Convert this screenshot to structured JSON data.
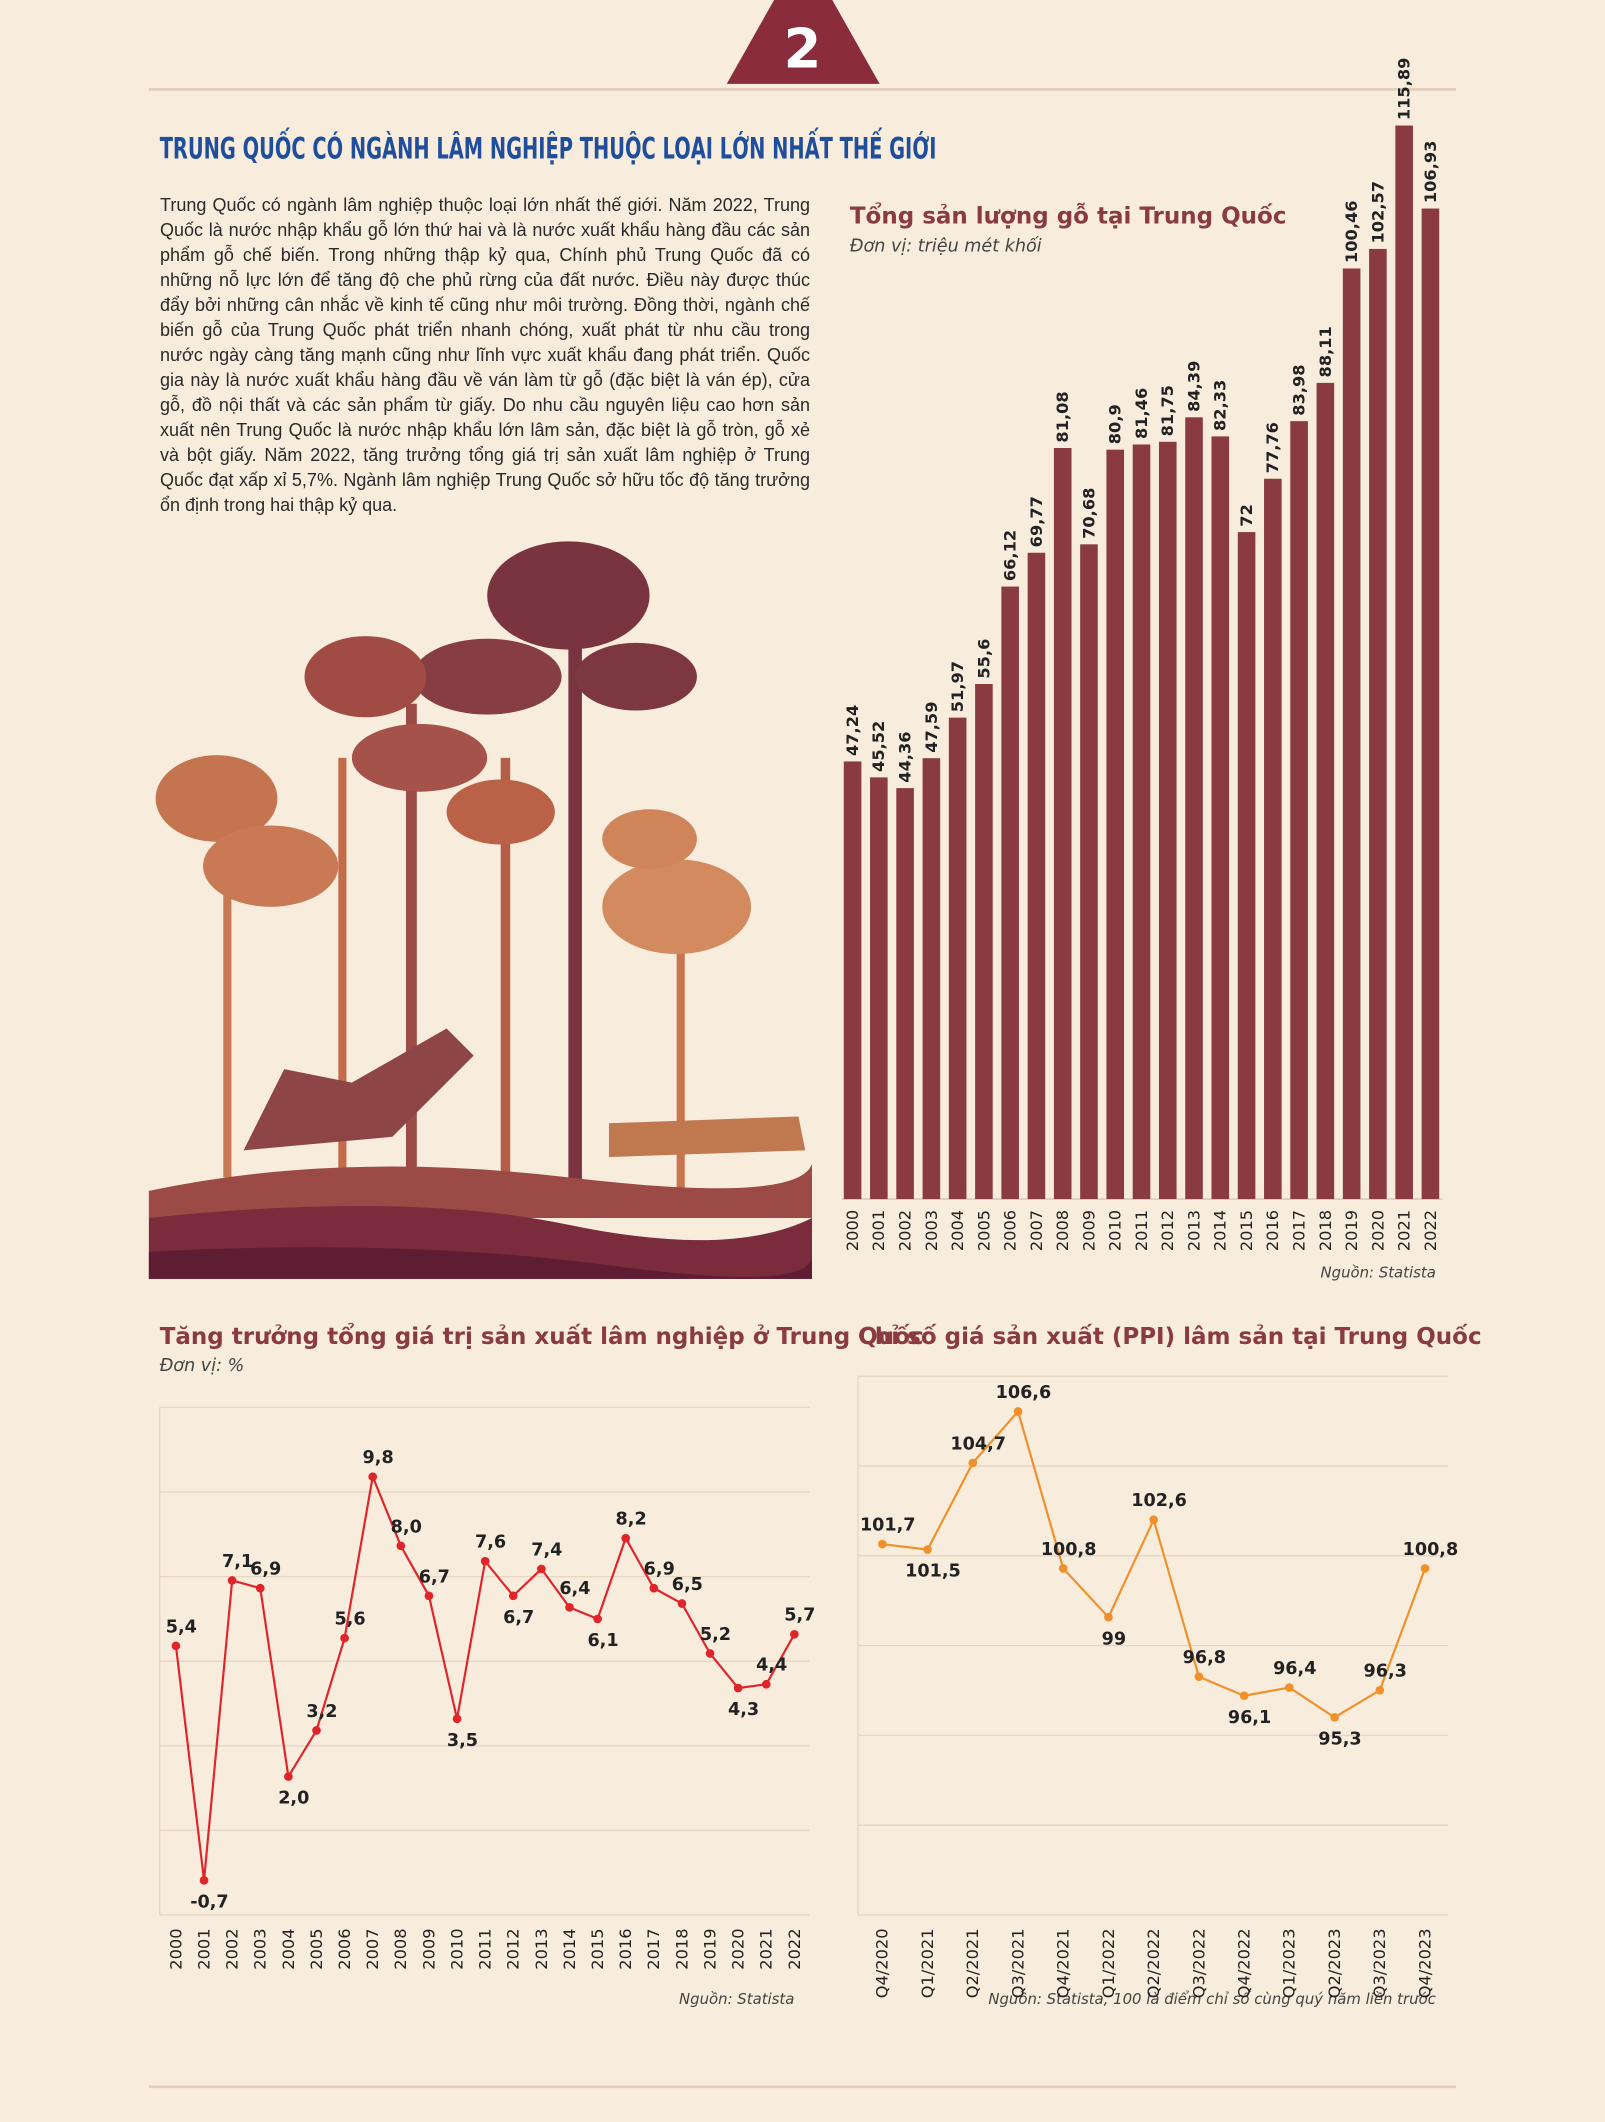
{
  "badge": "2",
  "title": "TRUNG QUỐC CÓ  NGÀNH LÂM NGHIỆP THUỘC LOẠI LỚN NHẤT THẾ GIỚI",
  "paragraph": "Trung Quốc có ngành lâm nghiệp thuộc loại lớn nhất thế giới. Năm 2022, Trung Quốc là nước nhập khẩu gỗ lớn thứ hai và là nước xuất khẩu hàng đầu các sản phẩm gỗ chế biến. Trong những thập kỷ qua, Chính phủ Trung Quốc đã có những nỗ lực lớn để tăng độ che phủ rừng của đất nước. Điều này được thúc đẩy bởi những cân nhắc về kinh tế cũng như môi trường. Đồng thời, ngành chế biến gỗ của Trung Quốc phát triển nhanh chóng, xuất phát từ nhu cầu trong nước ngày càng tăng mạnh cũng như lĩnh vực xuất khẩu đang phát triển. Quốc gia này là nước xuất khẩu hàng đầu về ván làm từ gỗ (đặc biệt là ván ép), cửa gỗ, đồ nội thất và các sản phẩm từ giấy. Do nhu cầu nguyên liệu cao hơn sản xuất nên Trung Quốc là nước nhập khẩu lớn lâm sản, đặc biệt là gỗ tròn, gỗ xẻ và bột giấy. Năm 2022, tăng trưởng tổng giá trị sản xuất lâm nghiệp ở Trung Quốc đạt xấp xỉ 5,7%. Ngành lâm nghiệp Trung Quốc sở hữu tốc độ tăng trưởng ổn định trong hai thập kỷ qua.",
  "chart_data": [
    {
      "type": "bar",
      "title": "Tổng sản lượng gỗ tại Trung Quốc",
      "subtitle": "Đơn vị: triệu mét khối",
      "source": "Nguồn: Statista",
      "categories": [
        "2000",
        "2001",
        "2002",
        "2003",
        "2004",
        "2005",
        "2006",
        "2007",
        "2008",
        "2009",
        "2010",
        "2011",
        "2012",
        "2013",
        "2014",
        "2015",
        "2016",
        "2017",
        "2018",
        "2019",
        "2020",
        "2021",
        "2022"
      ],
      "values": [
        47.24,
        45.52,
        44.36,
        47.59,
        51.97,
        55.6,
        66.12,
        69.77,
        81.08,
        70.68,
        80.9,
        81.46,
        81.75,
        84.39,
        82.33,
        72,
        77.76,
        83.98,
        88.11,
        100.46,
        102.57,
        115.89,
        106.93
      ],
      "value_labels": [
        "47,24",
        "45,52",
        "44,36",
        "47,59",
        "51,97",
        "55,6",
        "66,12",
        "69,77",
        "81,08",
        "70,68",
        "80,9",
        "81,46",
        "81,75",
        "84,39",
        "82,33",
        "72",
        "77,76",
        "83,98",
        "88,11",
        "100,46",
        "102,57",
        "115,89",
        "106,93"
      ],
      "color": "#8a3a41",
      "ylim": [
        0,
        116
      ]
    },
    {
      "type": "line",
      "title": "Tăng trưởng tổng giá trị sản xuất lâm nghiệp ở Trung Quốc",
      "subtitle": "Đơn vị: %",
      "source": "Nguồn: Statista",
      "categories": [
        "2000",
        "2001",
        "2002",
        "2003",
        "2004",
        "2005",
        "2006",
        "2007",
        "2008",
        "2009",
        "2010",
        "2011",
        "2012",
        "2013",
        "2014",
        "2015",
        "2016",
        "2017",
        "2018",
        "2019",
        "2020",
        "2021",
        "2022"
      ],
      "values": [
        5.4,
        -0.7,
        7.1,
        6.9,
        2.0,
        3.2,
        5.6,
        9.8,
        8.0,
        6.7,
        3.5,
        7.6,
        6.7,
        7.4,
        6.4,
        6.1,
        8.2,
        6.9,
        6.5,
        5.2,
        4.3,
        4.4,
        5.7
      ],
      "value_labels": [
        "5,4",
        "-0,7",
        "7,1",
        "6,9",
        "2,0",
        "3,2",
        "5,6",
        "9,8",
        "8,0",
        "6,7",
        "3,5",
        "7,6",
        "6,7",
        "7,4",
        "6,4",
        "6,1",
        "8,2",
        "6,9",
        "6,5",
        "5,2",
        "4,3",
        "4,4",
        "5,7"
      ],
      "color": "#e0242a",
      "ylim": [
        -1.6,
        11.6
      ],
      "grid": true
    },
    {
      "type": "line",
      "title": "Chỉ số giá sản xuất (PPI) lâm sản tại Trung Quốc",
      "source": "Nguồn: Statista, 100 là điểm chỉ số cùng quý năm liền trước",
      "categories": [
        "Q4/2020",
        "Q1/2021",
        "Q2/2021",
        "Q3/2021",
        "Q4/2021",
        "Q1/2022",
        "Q2/2022",
        "Q3/2022",
        "Q4/2022",
        "Q1/2023",
        "Q2/2023",
        "Q3/2023",
        "Q4/2023"
      ],
      "values": [
        101.7,
        101.5,
        104.7,
        106.6,
        100.8,
        99,
        102.6,
        96.8,
        96.1,
        96.4,
        95.3,
        96.3,
        100.8
      ],
      "value_labels": [
        "101,7",
        "101,5",
        "104,7",
        "106,6",
        "100,8",
        "99",
        "102,6",
        "96,8",
        "96,1",
        "96,4",
        "95,3",
        "96,3",
        "100,8"
      ],
      "color": "#f0902a",
      "ylim": [
        88,
        107.9
      ],
      "grid": true
    }
  ]
}
